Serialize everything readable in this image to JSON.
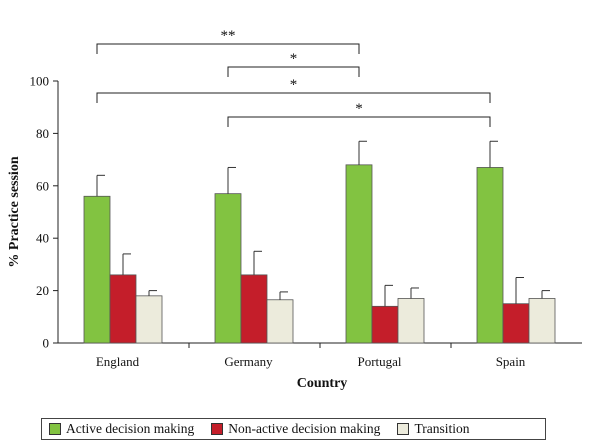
{
  "chart_data": {
    "type": "bar",
    "title": "",
    "xlabel": "Country",
    "ylabel": "% Practice session",
    "ylim": [
      0,
      100
    ],
    "yticks": [
      "0",
      "20",
      "40",
      "60",
      "80",
      "100"
    ],
    "categories": [
      "England",
      "Germany",
      "Portugal",
      "Spain"
    ],
    "series": [
      {
        "name": "Active decision making",
        "color": "#82c341",
        "values": [
          56,
          57,
          68,
          67
        ],
        "errors": [
          8,
          10,
          9,
          10
        ]
      },
      {
        "name": "Non-active decision making",
        "color": "#c41e2a",
        "values": [
          26,
          26,
          14,
          15
        ],
        "errors": [
          8,
          9,
          8,
          10
        ]
      },
      {
        "name": "Transition",
        "color": "#ecebdc",
        "values": [
          18,
          16.5,
          17,
          17
        ],
        "errors": [
          2,
          3,
          4,
          3
        ]
      }
    ],
    "significance": [
      {
        "from": "England",
        "to": "Portugal",
        "label": "**"
      },
      {
        "from": "Germany",
        "to": "Portugal",
        "label": "*"
      },
      {
        "from": "England",
        "to": "Spain",
        "label": "*"
      },
      {
        "from": "Germany",
        "to": "Spain",
        "label": "*"
      }
    ],
    "legend_position": "bottom"
  }
}
